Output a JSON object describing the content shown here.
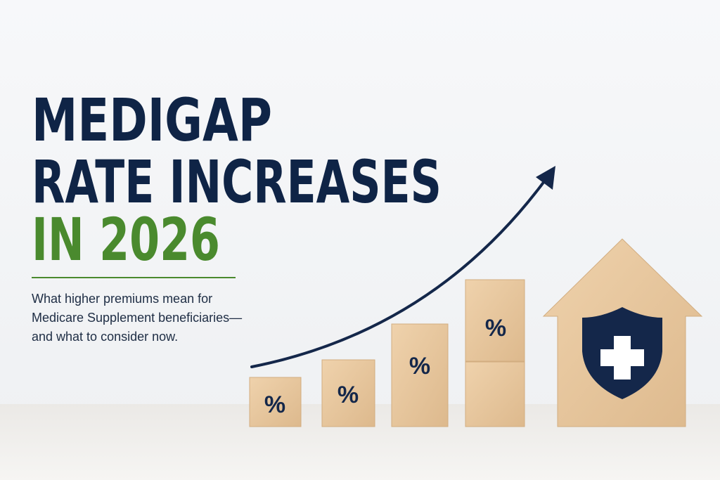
{
  "headline": {
    "lines": [
      "MEDIGAP",
      "RATE INCREASES",
      "IN 2026"
    ]
  },
  "subtitle": {
    "lines": [
      "What higher premiums mean for",
      "Medicare Supplement beneficiaries—",
      "and what to consider now."
    ]
  },
  "blocks": {
    "labels": [
      "%",
      "%",
      "%",
      "%"
    ]
  }
}
